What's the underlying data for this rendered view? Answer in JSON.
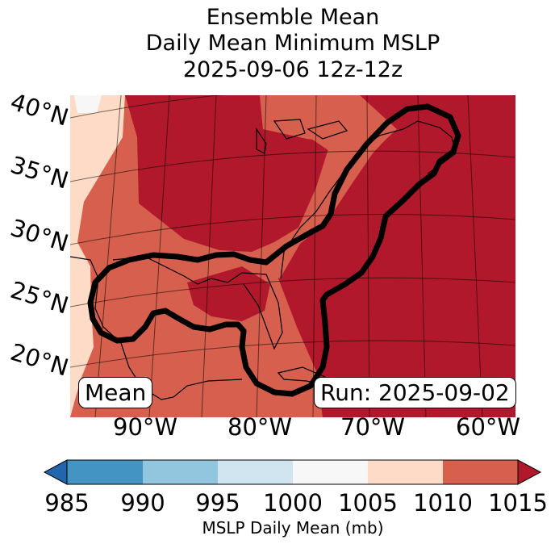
{
  "title": {
    "line1": "Ensemble Mean",
    "line2": "Daily Mean Minimum MSLP",
    "line3": "2025-09-06 12z-12z"
  },
  "map": {
    "lat_labels": [
      "40°N",
      "35°N",
      "30°N",
      "25°N",
      "20°N"
    ],
    "lon_labels": [
      "90°W",
      "80°W",
      "70°W",
      "60°W"
    ],
    "mean_label": "Mean",
    "run_label": "Run: 2025-09-02",
    "contour_description": "ensemble track/probability contour",
    "colors": {
      "deep_red": "#b2182b",
      "mid_red": "#d6604d",
      "light_peach": "#fddbc7",
      "near_white": "#f7f7f7"
    }
  },
  "colorbar": {
    "ticks": [
      "985",
      "990",
      "995",
      "1000",
      "1005",
      "1010",
      "1015"
    ],
    "label": "MSLP Daily Mean (mb)",
    "colors": [
      "#4393c3",
      "#92c5de",
      "#d1e5f0",
      "#f7f7f7",
      "#fddbc7",
      "#d6604d"
    ],
    "under_color": "#2166ac",
    "over_color": "#b2182b"
  }
}
